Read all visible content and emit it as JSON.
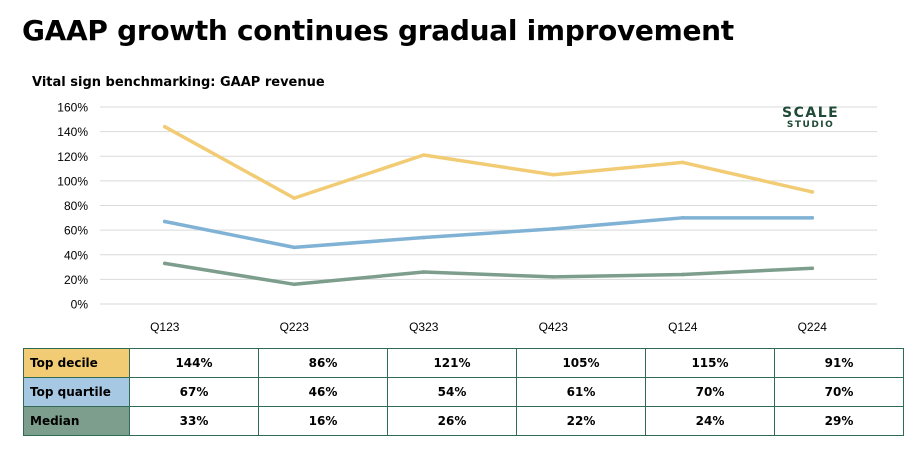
{
  "title": "GAAP growth continues gradual improvement",
  "subtitle": "Vital sign benchmarking: GAAP revenue",
  "logo": {
    "line1": "SCALE",
    "line2": "STUDIO"
  },
  "chart_data": {
    "type": "line",
    "categories": [
      "Q123",
      "Q223",
      "Q323",
      "Q423",
      "Q124",
      "Q224"
    ],
    "yticks": [
      "0%",
      "20%",
      "40%",
      "60%",
      "80%",
      "100%",
      "120%",
      "140%",
      "160%"
    ],
    "ylim": [
      0,
      160
    ],
    "grid": true,
    "series": [
      {
        "name": "Top decile",
        "color": "#f2cc74",
        "values": [
          144,
          86,
          121,
          105,
          115,
          91
        ]
      },
      {
        "name": "Top quartile",
        "color": "#7fb2d4",
        "values": [
          67,
          46,
          54,
          61,
          70,
          70
        ]
      },
      {
        "name": "Median",
        "color": "#7d9e8c",
        "values": [
          33,
          16,
          26,
          22,
          24,
          29
        ]
      }
    ]
  },
  "table": {
    "rows": [
      {
        "label": "Top decile",
        "color": "#f2cc74",
        "values": [
          "144%",
          "86%",
          "121%",
          "105%",
          "115%",
          "91%"
        ]
      },
      {
        "label": "Top quartile",
        "color": "#a7c8e2",
        "values": [
          "67%",
          "46%",
          "54%",
          "61%",
          "70%",
          "70%"
        ]
      },
      {
        "label": "Median",
        "color": "#7d9e8c",
        "values": [
          "33%",
          "16%",
          "26%",
          "22%",
          "24%",
          "29%"
        ]
      }
    ]
  }
}
